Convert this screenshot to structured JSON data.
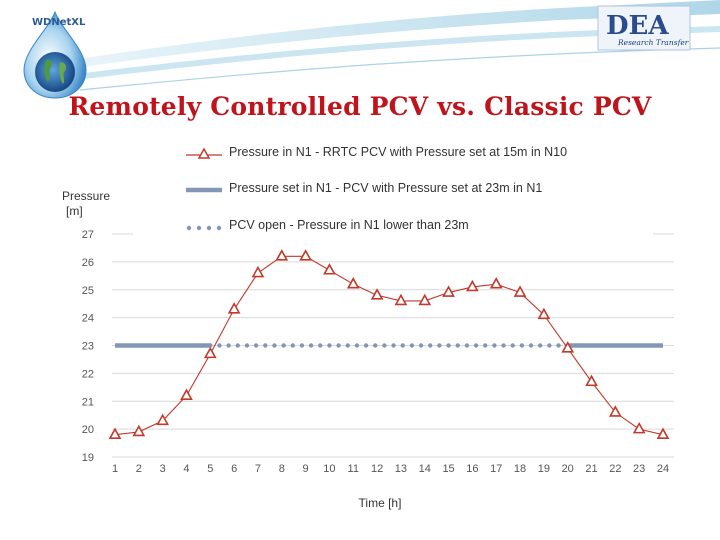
{
  "slide": {
    "title": "Remotely Controlled PCV vs. Classic PCV",
    "logo_left_text": "WDNetXL",
    "logo_right_text": "DEA",
    "logo_right_subtext": "Research Transfer"
  },
  "colors": {
    "series1": "#c0392b",
    "series2": "#8396b6",
    "series3": "#8396b6",
    "title": "#c0141c"
  },
  "chart_data": {
    "type": "line",
    "ylabel_line1": "Pressure",
    "ylabel_line2": "[m]",
    "xlabel": "Time [h]",
    "ylim": [
      19,
      27
    ],
    "yticks": [
      19,
      20,
      21,
      22,
      23,
      24,
      25,
      26,
      27
    ],
    "x": [
      1,
      2,
      3,
      4,
      5,
      6,
      7,
      8,
      9,
      10,
      11,
      12,
      13,
      14,
      15,
      16,
      17,
      18,
      19,
      20,
      21,
      22,
      23,
      24
    ],
    "grid": true,
    "legend_placement": "top",
    "series": [
      {
        "name": "Pressure in N1 - RRTC PCV with Pressure set at 15m in N10",
        "style": "line-triangle",
        "values": [
          19.8,
          19.9,
          20.3,
          21.2,
          22.7,
          24.3,
          25.6,
          26.2,
          26.2,
          25.7,
          25.2,
          24.8,
          24.6,
          24.6,
          24.9,
          25.1,
          25.2,
          24.9,
          24.1,
          22.9,
          21.7,
          20.6,
          20.0,
          19.8
        ]
      },
      {
        "name": "Pressure set in N1 - PCV with Pressure set at 23m in N1",
        "style": "thick-line",
        "values": [
          23,
          23,
          23,
          23,
          23,
          null,
          null,
          null,
          null,
          null,
          null,
          null,
          null,
          null,
          null,
          null,
          null,
          null,
          null,
          23,
          23,
          23,
          23,
          23
        ]
      },
      {
        "name": "PCV open - Pressure in N1 lower than 23m",
        "style": "dotted",
        "values": [
          null,
          null,
          null,
          null,
          23,
          23,
          23,
          23,
          23,
          23,
          23,
          23,
          23,
          23,
          23,
          23,
          23,
          23,
          23,
          23,
          null,
          null,
          null,
          null
        ]
      }
    ]
  }
}
